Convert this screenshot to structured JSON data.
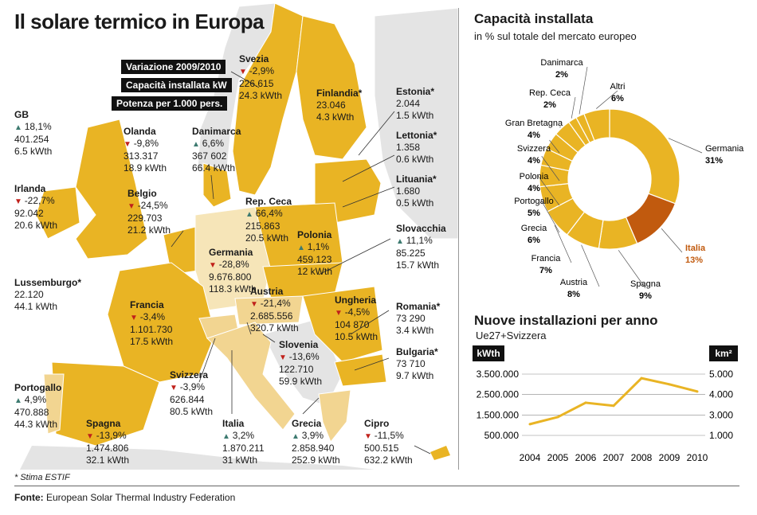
{
  "title": "Il solare termico in Europa",
  "legend": {
    "variation": "Variazione 2009/2010",
    "capacity": "Capacità installata kW",
    "power": "Potenza per 1.000 pers."
  },
  "countries": [
    {
      "id": "svezia",
      "name": "Svezia",
      "trend": "down",
      "variation": "-2,9%",
      "capacity": "226.615",
      "power": "24.3 kWth"
    },
    {
      "id": "finlandia",
      "name": "Finlandia*",
      "trend": "",
      "variation": "",
      "capacity": "23.046",
      "power": "4.3 kWth"
    },
    {
      "id": "estonia",
      "name": "Estonia*",
      "trend": "",
      "variation": "",
      "capacity": "2.044",
      "power": "1.5 kWth"
    },
    {
      "id": "lettonia",
      "name": "Lettonia*",
      "trend": "",
      "variation": "",
      "capacity": "1.358",
      "power": "0.6 kWth"
    },
    {
      "id": "lituania",
      "name": "Lituania*",
      "trend": "",
      "variation": "",
      "capacity": "1.680",
      "power": "0.5 kWth"
    },
    {
      "id": "gb",
      "name": "GB",
      "trend": "up",
      "variation": "18,1%",
      "capacity": "401.254",
      "power": "6.5 kWth"
    },
    {
      "id": "olanda",
      "name": "Olanda",
      "trend": "down",
      "variation": "-9,8%",
      "capacity": "313.317",
      "power": "18.9 kWth"
    },
    {
      "id": "danimarca",
      "name": "Danimarca",
      "trend": "up",
      "variation": "6,6%",
      "capacity": "367 602",
      "power": "66.4 kWth"
    },
    {
      "id": "irlanda",
      "name": "Irlanda",
      "trend": "down",
      "variation": "-22,7%",
      "capacity": "92.042",
      "power": "20.6 kWth"
    },
    {
      "id": "belgio",
      "name": "Belgio",
      "trend": "down",
      "variation": "-24,5%",
      "capacity": "229.703",
      "power": "21.2 kWth"
    },
    {
      "id": "repceca",
      "name": "Rep. Ceca",
      "trend": "up",
      "variation": "66,4%",
      "capacity": "215.863",
      "power": "20.5 kWth"
    },
    {
      "id": "polonia",
      "name": "Polonia",
      "trend": "up",
      "variation": "1,1%",
      "capacity": "459.123",
      "power": "12 kWth"
    },
    {
      "id": "slovacchia",
      "name": "Slovacchia",
      "trend": "up",
      "variation": "11,1%",
      "capacity": "85.225",
      "power": "15.7 kWth"
    },
    {
      "id": "germania",
      "name": "Germania",
      "trend": "down",
      "variation": "-28,8%",
      "capacity": "9.676.800",
      "power": "118.3 kWth"
    },
    {
      "id": "lussemburgo",
      "name": "Lussemburgo*",
      "trend": "",
      "variation": "",
      "capacity": "22.120",
      "power": "44.1 kWth"
    },
    {
      "id": "austria",
      "name": "Austria",
      "trend": "down",
      "variation": "-21,4%",
      "capacity": "2.685.556",
      "power": "320.7 kWth"
    },
    {
      "id": "ungheria",
      "name": "Ungheria",
      "trend": "down",
      "variation": "-4,5%",
      "capacity": "104 870",
      "power": "10.5 kWth"
    },
    {
      "id": "romania",
      "name": "Romania*",
      "trend": "",
      "variation": "",
      "capacity": "73 290",
      "power": "3.4 kWth"
    },
    {
      "id": "francia",
      "name": "Francia",
      "trend": "down",
      "variation": "-3,4%",
      "capacity": "1.101.730",
      "power": "17.5 kWth"
    },
    {
      "id": "slovenia",
      "name": "Slovenia",
      "trend": "down",
      "variation": "-13,6%",
      "capacity": "122.710",
      "power": "59.9 kWth"
    },
    {
      "id": "bulgaria",
      "name": "Bulgaria*",
      "trend": "",
      "variation": "",
      "capacity": "73 710",
      "power": "9.7 kWth"
    },
    {
      "id": "svizzera",
      "name": "Svizzera",
      "trend": "down",
      "variation": "-3,9%",
      "capacity": "626.844",
      "power": "80.5 kWth"
    },
    {
      "id": "portogallo",
      "name": "Portogallo",
      "trend": "up",
      "variation": "4,9%",
      "capacity": "470.888",
      "power": "44.3 kWth"
    },
    {
      "id": "spagna",
      "name": "Spagna",
      "trend": "down",
      "variation": "-13,9%",
      "capacity": "1.474.806",
      "power": "32.1 kWth"
    },
    {
      "id": "italia",
      "name": "Italia",
      "trend": "up",
      "variation": "3,2%",
      "capacity": "1.870.211",
      "power": "31 kWth"
    },
    {
      "id": "grecia",
      "name": "Grecia",
      "trend": "up",
      "variation": "3,9%",
      "capacity": "2.858.940",
      "power": "252.9 kWth"
    },
    {
      "id": "cipro",
      "name": "Cipro",
      "trend": "down",
      "variation": "-11,5%",
      "capacity": "500.515",
      "power": "632.2 kWth"
    }
  ],
  "note": "* Stima ESTIF",
  "source_label": "Fonte:",
  "source_text": "European Solar Thermal Industry Federation",
  "colors": {
    "gold": "#e9b424",
    "light_gold": "#f2d591",
    "pale": "#f6e5b8",
    "grey": "#e4e4e4",
    "italia": "#c15a0e",
    "up": "#3d7a70",
    "down": "#c0201a"
  },
  "chart_data": [
    {
      "type": "pie",
      "title": "Capacità installata",
      "subtitle": "in % sul totale del mercato europeo",
      "categories": [
        "Germania",
        "Italia",
        "Spagna",
        "Austria",
        "Francia",
        "Grecia",
        "Portogallo",
        "Polonia",
        "Svizzera",
        "Gran Bretagna",
        "Rep. Ceca",
        "Danimarca",
        "Altri"
      ],
      "values": [
        31,
        13,
        9,
        8,
        7,
        6,
        5,
        4,
        4,
        4,
        2,
        2,
        6
      ],
      "labels": [
        "31%",
        "13%",
        "9%",
        "8%",
        "7%",
        "6%",
        "5%",
        "4%",
        "4%",
        "4%",
        "2%",
        "2%",
        "6%"
      ],
      "highlight": "Italia"
    },
    {
      "type": "line",
      "title": "Nuove installazioni per anno",
      "subtitle": "Ue27+Svizzera",
      "ylabel": "kWth",
      "y2label": "km²",
      "x": [
        2004,
        2005,
        2006,
        2007,
        2008,
        2009,
        2010
      ],
      "x_labels": [
        "2004",
        "2005",
        "2006",
        "2007",
        "2008",
        "2009",
        "2010"
      ],
      "series": [
        {
          "values": [
            1050000,
            1400000,
            2100000,
            1950000,
            3300000,
            3000000,
            2650000
          ]
        }
      ],
      "ylim": [
        500000,
        3500000
      ],
      "y_ticks": [
        500000,
        1500000,
        2500000,
        3500000
      ],
      "y_tick_labels": [
        "500.000",
        "1.500.000",
        "2.500.000",
        "3.500.000"
      ],
      "y2_tick_labels": [
        "1.000",
        "3.000",
        "4.000",
        "5.000"
      ],
      "grid": true
    }
  ]
}
